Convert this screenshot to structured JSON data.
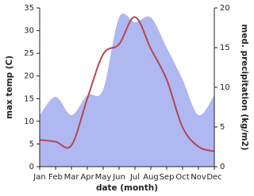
{
  "chart_data": {
    "type": "line-area",
    "categories": [
      "Jan",
      "Feb",
      "Mar",
      "Apr",
      "May",
      "Jun",
      "Jul",
      "Aug",
      "Sep",
      "Oct",
      "Nov",
      "Dec"
    ],
    "xlabel": "date (month)",
    "ylabel": "max temp (C)",
    "y2label": "med. precipitation (kg/m2)",
    "series": [
      {
        "name": "max temp",
        "kind": "line",
        "color": "#b5474f",
        "values": [
          5.9,
          5.5,
          4.7,
          15.0,
          24.8,
          27.0,
          33.0,
          26.0,
          19.2,
          8.7,
          4.4,
          3.4
        ]
      },
      {
        "name": "med. precipitation",
        "kind": "area",
        "axis": "y2",
        "color": "#b0b8f2",
        "values": [
          6.5,
          8.8,
          6.5,
          9.0,
          9.7,
          18.8,
          18.2,
          18.8,
          15.0,
          11.0,
          6.5,
          9.0
        ]
      }
    ],
    "ylim": [
      0,
      35
    ],
    "yticks": [
      0,
      5,
      10,
      15,
      20,
      25,
      30,
      35
    ],
    "y2lim": [
      0,
      20
    ],
    "y2ticks": [
      0,
      5,
      10,
      15,
      20
    ]
  }
}
